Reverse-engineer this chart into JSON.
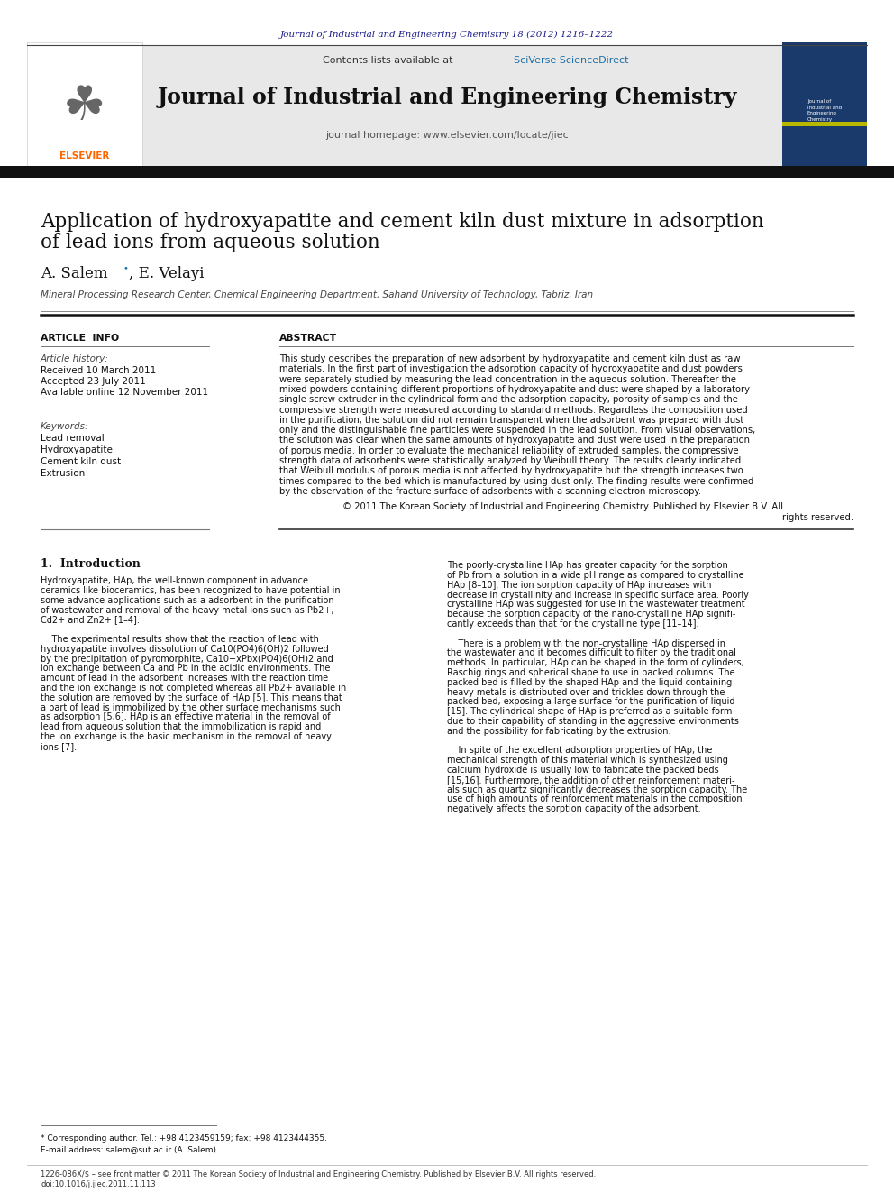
{
  "page_bg": "#ffffff",
  "top_journal_ref": "Journal of Industrial and Engineering Chemistry 18 (2012) 1216–1222",
  "top_journal_ref_color": "#1a1a8c",
  "header_bg": "#e8e8e8",
  "header_contents": "Contents lists available at",
  "header_sciverse": "SciVerse ScienceDirect",
  "header_sciverse_color": "#1a6fa8",
  "journal_title": "Journal of Industrial and Engineering Chemistry",
  "journal_homepage": "journal homepage: www.elsevier.com/locate/jiec",
  "elsevier_logo_color": "#FF6600",
  "elsevier_text": "ELSEVIER",
  "article_title_line1": "Application of hydroxyapatite and cement kiln dust mixture in adsorption",
  "article_title_line2": "of lead ions from aqueous solution",
  "affiliation": "Mineral Processing Research Center, Chemical Engineering Department, Sahand University of Technology, Tabriz, Iran",
  "article_info_header": "ARTICLE  INFO",
  "abstract_header": "ABSTRACT",
  "article_history_label": "Article history:",
  "received": "Received 10 March 2011",
  "accepted": "Accepted 23 July 2011",
  "available": "Available online 12 November 2011",
  "keywords_label": "Keywords:",
  "keywords": [
    "Lead removal",
    "Hydroxyapatite",
    "Cement kiln dust",
    "Extrusion"
  ],
  "abstract_text": "This study describes the preparation of new adsorbent by hydroxyapatite and cement kiln dust as raw\nmaterials. In the first part of investigation the adsorption capacity of hydroxyapatite and dust powders\nwere separately studied by measuring the lead concentration in the aqueous solution. Thereafter the\nmixed powders containing different proportions of hydroxyapatite and dust were shaped by a laboratory\nsingle screw extruder in the cylindrical form and the adsorption capacity, porosity of samples and the\ncompressive strength were measured according to standard methods. Regardless the composition used\nin the purification, the solution did not remain transparent when the adsorbent was prepared with dust\nonly and the distinguishable fine particles were suspended in the lead solution. From visual observations,\nthe solution was clear when the same amounts of hydroxyapatite and dust were used in the preparation\nof porous media. In order to evaluate the mechanical reliability of extruded samples, the compressive\nstrength data of adsorbents were statistically analyzed by Weibull theory. The results clearly indicated\nthat Weibull modulus of porous media is not affected by hydroxyapatite but the strength increases two\ntimes compared to the bed which is manufactured by using dust only. The finding results were confirmed\nby the observation of the fracture surface of adsorbents with a scanning electron microscopy.",
  "copyright_text": "© 2011 The Korean Society of Industrial and Engineering Chemistry. Published by Elsevier B.V. All\nrights reserved.",
  "section1_header": "1.  Introduction",
  "intro_text_left": "Hydroxyapatite, HAp, the well-known component in advance\nceramics like bioceramics, has been recognized to have potential in\nsome advance applications such as a adsorbent in the purification\nof wastewater and removal of the heavy metal ions such as Pb2+,\nCd2+ and Zn2+ [1–4].\n\n    The experimental results show that the reaction of lead with\nhydroxyapatite involves dissolution of Ca10(PO4)6(OH)2 followed\nby the precipitation of pyromorphite, Ca10−xPbx(PO4)6(OH)2 and\nion exchange between Ca and Pb in the acidic environments. The\namount of lead in the adsorbent increases with the reaction time\nand the ion exchange is not completed whereas all Pb2+ available in\nthe solution are removed by the surface of HAp [5]. This means that\na part of lead is immobilized by the other surface mechanisms such\nas adsorption [5,6]. HAp is an effective material in the removal of\nlead from aqueous solution that the immobilization is rapid and\nthe ion exchange is the basic mechanism in the removal of heavy\nions [7].",
  "intro_text_right": "The poorly-crystalline HAp has greater capacity for the sorption\nof Pb from a solution in a wide pH range as compared to crystalline\nHAp [8–10]. The ion sorption capacity of HAp increases with\ndecrease in crystallinity and increase in specific surface area. Poorly\ncrystalline HAp was suggested for use in the wastewater treatment\nbecause the sorption capacity of the nano-crystalline HAp signifi-\ncantly exceeds than that for the crystalline type [11–14].\n\n    There is a problem with the non-crystalline HAp dispersed in\nthe wastewater and it becomes difficult to filter by the traditional\nmethods. In particular, HAp can be shaped in the form of cylinders,\nRaschig rings and spherical shape to use in packed columns. The\npacked bed is filled by the shaped HAp and the liquid containing\nheavy metals is distributed over and trickles down through the\npacked bed, exposing a large surface for the purification of liquid\n[15]. The cylindrical shape of HAp is preferred as a suitable form\ndue to their capability of standing in the aggressive environments\nand the possibility for fabricating by the extrusion.\n\n    In spite of the excellent adsorption properties of HAp, the\nmechanical strength of this material which is synthesized using\ncalcium hydroxide is usually low to fabricate the packed beds\n[15,16]. Furthermore, the addition of other reinforcement materi-\nals such as quartz significantly decreases the sorption capacity. The\nuse of high amounts of reinforcement materials in the composition\nnegatively affects the sorption capacity of the adsorbent.",
  "footnote_star": "* Corresponding author. Tel.: +98 4123459159; fax: +98 4123444355.",
  "footnote_email": "E-mail address: salem@sut.ac.ir (A. Salem).",
  "footer_text": "1226-086X/$ – see front matter © 2011 The Korean Society of Industrial and Engineering Chemistry. Published by Elsevier B.V. All rights reserved.",
  "footer_doi": "doi:10.1016/j.jiec.2011.11.113"
}
